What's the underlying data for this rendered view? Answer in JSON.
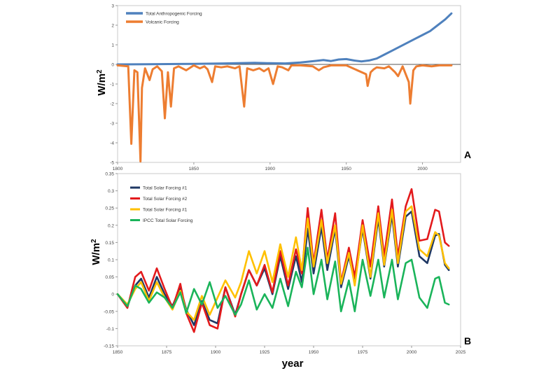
{
  "chart_data": [
    {
      "panel_label": "A",
      "type": "line",
      "ylabel": "W/m",
      "ylabel_sup": "2",
      "xlim": [
        1800,
        2025
      ],
      "ylim": [
        -5,
        3
      ],
      "x_ticks": [
        1800,
        1850,
        1900,
        1950,
        2000
      ],
      "y_ticks": [
        3,
        2,
        1,
        0,
        -1,
        -2,
        -3,
        -4,
        -5
      ],
      "grid": false,
      "zero_line": true,
      "legend_position": "top-left",
      "series": [
        {
          "name": "Total Anthropogenic Forcing",
          "color": "#4f81bd",
          "x": [
            1800,
            1820,
            1850,
            1870,
            1890,
            1900,
            1910,
            1920,
            1930,
            1935,
            1940,
            1945,
            1950,
            1955,
            1960,
            1965,
            1970,
            1975,
            1980,
            1985,
            1990,
            1995,
            2000,
            2005,
            2010,
            2015,
            2019
          ],
          "y": [
            0.0,
            0.01,
            0.03,
            0.05,
            0.08,
            0.06,
            0.05,
            0.1,
            0.18,
            0.22,
            0.17,
            0.25,
            0.27,
            0.2,
            0.15,
            0.2,
            0.3,
            0.5,
            0.7,
            0.9,
            1.1,
            1.3,
            1.5,
            1.7,
            2.0,
            2.3,
            2.6
          ]
        },
        {
          "name": "Volcanic Forcing",
          "color": "#ed7d31",
          "x": [
            1800,
            1807,
            1809,
            1811,
            1813,
            1815,
            1816,
            1818,
            1821,
            1823,
            1826,
            1829,
            1831,
            1833,
            1835,
            1837,
            1840,
            1845,
            1850,
            1854,
            1857,
            1859,
            1862,
            1864,
            1868,
            1872,
            1877,
            1880,
            1883,
            1885,
            1889,
            1893,
            1896,
            1899,
            1902,
            1905,
            1908,
            1912,
            1914,
            1920,
            1928,
            1932,
            1935,
            1940,
            1950,
            1963,
            1964,
            1966,
            1968,
            1970,
            1975,
            1978,
            1982,
            1984,
            1987,
            1991,
            1992,
            1994,
            1996,
            2000,
            2006,
            2011,
            2015,
            2019
          ],
          "y": [
            -0.05,
            -0.1,
            -4.05,
            -0.3,
            -0.4,
            -4.95,
            -1.2,
            -0.2,
            -0.8,
            -0.25,
            -0.1,
            -0.35,
            -2.75,
            -0.4,
            -2.15,
            -0.2,
            -0.1,
            -0.3,
            -0.05,
            -0.2,
            -0.1,
            -0.25,
            -0.9,
            -0.1,
            -0.15,
            -0.1,
            -0.2,
            -0.1,
            -2.15,
            -0.2,
            -0.3,
            -0.2,
            -0.35,
            -0.2,
            -1.0,
            -0.1,
            -0.15,
            -0.3,
            -0.05,
            -0.05,
            -0.1,
            -0.3,
            -0.15,
            -0.05,
            -0.05,
            -0.5,
            -1.1,
            -0.4,
            -0.25,
            -0.15,
            -0.2,
            -0.1,
            -0.4,
            -0.6,
            -0.1,
            -0.9,
            -2.0,
            -0.3,
            -0.1,
            -0.05,
            -0.1,
            -0.05,
            -0.05,
            -0.05
          ]
        }
      ]
    },
    {
      "panel_label": "B",
      "type": "line",
      "xlabel": "year",
      "ylabel": "W/m",
      "ylabel_sup": "2",
      "xlim": [
        1850,
        2025
      ],
      "ylim": [
        -0.15,
        0.35
      ],
      "x_ticks": [
        1850,
        1875,
        1900,
        1925,
        1950,
        1975,
        2000,
        2025
      ],
      "y_ticks": [
        0.35,
        0.3,
        0.25,
        0.2,
        0.15,
        0.1,
        0.05,
        0,
        -0.05,
        -0.1,
        -0.15
      ],
      "grid": false,
      "legend_position": "top-left",
      "series": [
        {
          "name": "Total Solar Forcing #1",
          "color": "#1f3864",
          "x": [
            1850,
            1855,
            1859,
            1862,
            1866,
            1870,
            1874,
            1878,
            1882,
            1885,
            1889,
            1893,
            1897,
            1901,
            1905,
            1910,
            1913,
            1917,
            1921,
            1925,
            1929,
            1933,
            1937,
            1941,
            1944,
            1947,
            1950,
            1954,
            1957,
            1961,
            1964,
            1968,
            1971,
            1975,
            1979,
            1983,
            1986,
            1990,
            1993,
            1997,
            2000,
            2004,
            2008,
            2012,
            2014,
            2017,
            2019
          ],
          "y": [
            0,
            -0.035,
            0.025,
            0.045,
            -0.01,
            0.05,
            0.0,
            -0.035,
            0.02,
            -0.045,
            -0.09,
            -0.02,
            -0.075,
            -0.085,
            0.02,
            -0.06,
            0.0,
            0.07,
            0.025,
            0.075,
            0.0,
            0.11,
            0.015,
            0.11,
            0.035,
            0.19,
            0.06,
            0.195,
            0.07,
            0.19,
            0.02,
            0.11,
            0.035,
            0.19,
            0.045,
            0.22,
            0.08,
            0.23,
            0.08,
            0.225,
            0.24,
            0.11,
            0.09,
            0.17,
            0.175,
            0.085,
            0.07
          ]
        },
        {
          "name": "Total Solar Forcing #2",
          "color": "#e31a1c",
          "x": [
            1850,
            1855,
            1859,
            1862,
            1866,
            1870,
            1874,
            1878,
            1882,
            1885,
            1889,
            1893,
            1897,
            1901,
            1905,
            1910,
            1913,
            1917,
            1921,
            1925,
            1929,
            1933,
            1937,
            1941,
            1944,
            1947,
            1950,
            1954,
            1957,
            1961,
            1964,
            1968,
            1971,
            1975,
            1979,
            1983,
            1986,
            1990,
            1993,
            1997,
            2000,
            2004,
            2008,
            2012,
            2014,
            2017,
            2019
          ],
          "y": [
            0,
            -0.04,
            0.05,
            0.065,
            0.01,
            0.075,
            0.015,
            -0.04,
            0.03,
            -0.055,
            -0.11,
            -0.025,
            -0.09,
            -0.1,
            0.02,
            -0.065,
            0.0,
            0.07,
            0.025,
            0.085,
            0.005,
            0.125,
            0.025,
            0.13,
            0.06,
            0.25,
            0.09,
            0.245,
            0.1,
            0.235,
            0.035,
            0.135,
            0.05,
            0.215,
            0.08,
            0.255,
            0.11,
            0.275,
            0.11,
            0.255,
            0.305,
            0.155,
            0.16,
            0.245,
            0.24,
            0.15,
            0.14
          ]
        },
        {
          "name": "Total Solar Forcing #1",
          "color": "#ffc000",
          "x": [
            1850,
            1855,
            1859,
            1862,
            1866,
            1870,
            1874,
            1878,
            1882,
            1885,
            1889,
            1893,
            1897,
            1901,
            1905,
            1910,
            1913,
            1917,
            1921,
            1925,
            1929,
            1933,
            1937,
            1941,
            1944,
            1947,
            1950,
            1954,
            1957,
            1961,
            1964,
            1968,
            1971,
            1975,
            1979,
            1983,
            1986,
            1990,
            1993,
            1997,
            2000,
            2004,
            2008,
            2012,
            2014,
            2017,
            2019
          ],
          "y": [
            0,
            -0.03,
            0.015,
            0.035,
            -0.02,
            0.035,
            -0.01,
            -0.045,
            0.01,
            -0.05,
            -0.075,
            -0.005,
            -0.06,
            -0.01,
            0.04,
            -0.01,
            0.035,
            0.125,
            0.06,
            0.125,
            0.035,
            0.145,
            0.05,
            0.165,
            0.07,
            0.22,
            0.08,
            0.215,
            0.09,
            0.2,
            0.03,
            0.12,
            0.025,
            0.2,
            0.05,
            0.235,
            0.085,
            0.245,
            0.09,
            0.24,
            0.255,
            0.13,
            0.11,
            0.18,
            0.17,
            0.09,
            0.075
          ]
        },
        {
          "name": "IPCC Total Solar Forcing",
          "color": "#1ab45a",
          "x": [
            1850,
            1855,
            1859,
            1862,
            1866,
            1870,
            1874,
            1878,
            1882,
            1885,
            1889,
            1893,
            1897,
            1901,
            1905,
            1910,
            1913,
            1917,
            1921,
            1925,
            1929,
            1933,
            1937,
            1941,
            1944,
            1947,
            1950,
            1954,
            1957,
            1961,
            1964,
            1968,
            1971,
            1975,
            1979,
            1983,
            1986,
            1990,
            1993,
            1997,
            2000,
            2004,
            2008,
            2012,
            2014,
            2017,
            2019
          ],
          "y": [
            0,
            -0.035,
            0.025,
            0.015,
            -0.025,
            0.005,
            -0.01,
            -0.04,
            0.005,
            -0.055,
            0.015,
            -0.03,
            0.035,
            -0.04,
            -0.005,
            -0.06,
            -0.03,
            0.04,
            -0.045,
            0.0,
            -0.04,
            0.045,
            -0.035,
            0.065,
            0.02,
            0.135,
            0.0,
            0.1,
            -0.015,
            0.095,
            -0.05,
            0.04,
            -0.05,
            0.1,
            -0.005,
            0.1,
            -0.01,
            0.1,
            -0.015,
            0.09,
            0.1,
            -0.01,
            -0.04,
            0.045,
            0.05,
            -0.025,
            -0.03
          ]
        }
      ]
    }
  ]
}
